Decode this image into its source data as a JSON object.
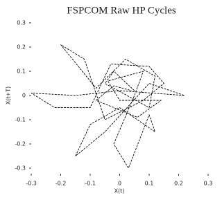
{
  "chart_data": {
    "type": "line",
    "title": "FSPCOM Raw HP Cycles",
    "x_label": "X(t)",
    "y_label": "X(t+T)",
    "x": [
      0.05,
      -0.02,
      -0.05,
      0.1,
      0.12,
      0.02,
      -0.08,
      -0.2,
      -0.12,
      -0.05,
      0.08,
      0.15,
      0.1,
      -0.03,
      -0.1,
      -0.22,
      -0.3,
      -0.15,
      0.0,
      0.22,
      0.1,
      -0.05,
      -0.15,
      -0.1,
      0.0,
      0.12,
      0.1,
      0.03,
      -0.02,
      0.05,
      0.08,
      -0.04,
      0.0,
      0.14,
      0.06,
      -0.08,
      -0.02,
      0.04
    ],
    "series": [
      {
        "color": "#000000",
        "values": [
          0.02,
          0.1,
          0.05,
          -0.05,
          0.08,
          0.15,
          0.03,
          0.21,
          0.15,
          -0.1,
          -0.02,
          0.05,
          0.12,
          0.13,
          -0.05,
          -0.05,
          0.01,
          0.0,
          0.02,
          0.0,
          0.05,
          -0.15,
          -0.25,
          -0.12,
          -0.05,
          -0.15,
          -0.08,
          -0.3,
          -0.2,
          0.0,
          0.1,
          0.06,
          -0.02,
          -0.02,
          -0.09,
          -0.02,
          0.04,
          0.02
        ]
      }
    ],
    "xlim": [
      -0.3,
      0.3
    ],
    "ylim": [
      -0.3,
      0.3
    ],
    "xticks": [
      -0.3,
      -0.2,
      -0.1,
      0,
      0.1,
      0.2,
      0.3
    ],
    "yticks": [
      -0.3,
      -0.2,
      -0.1,
      0,
      0.1,
      0.2,
      0.3
    ]
  }
}
